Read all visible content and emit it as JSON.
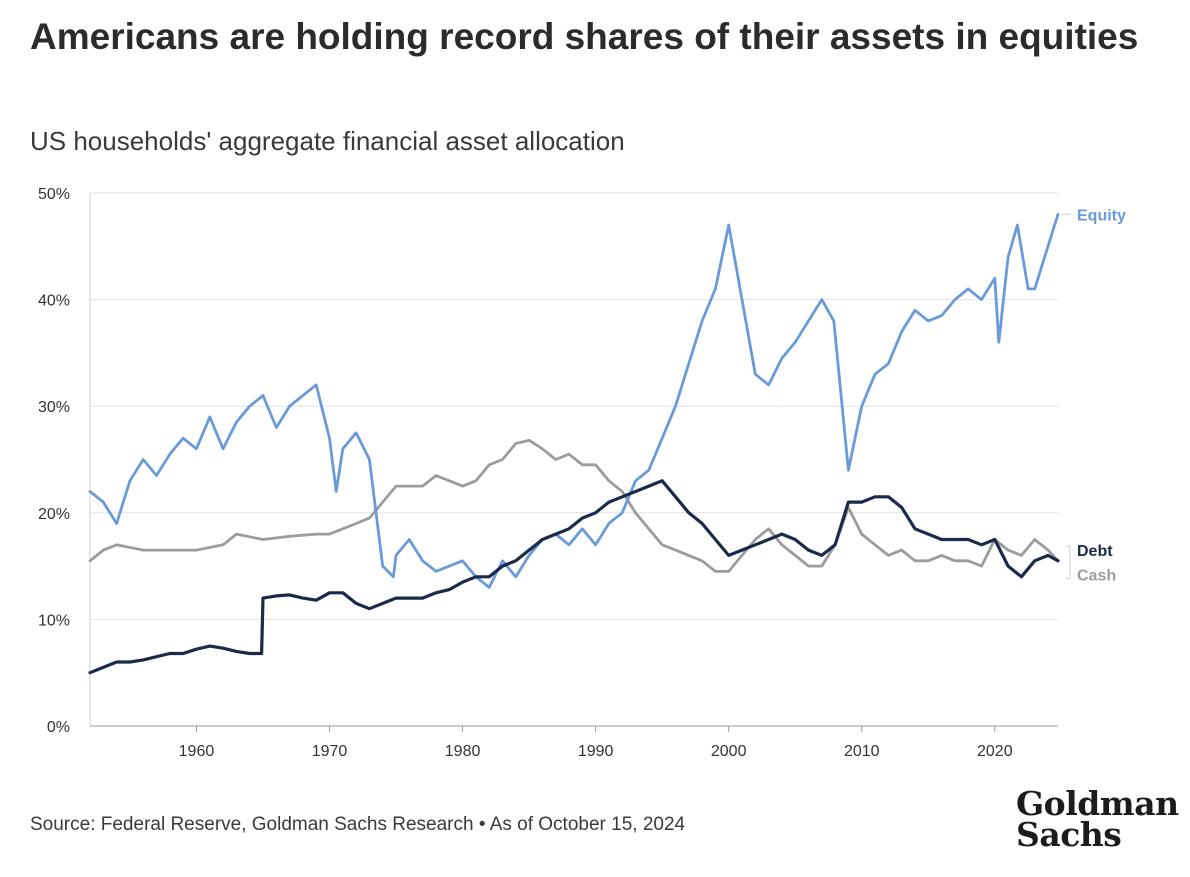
{
  "title": "Americans are holding record shares of their assets in equities",
  "subtitle": "US households' aggregate financial asset allocation",
  "source": "Source: Federal Reserve, Goldman Sachs Research • As of October 15, 2024",
  "logo": {
    "line1": "Goldman",
    "line2": "Sachs"
  },
  "chart_data": {
    "type": "line",
    "xlabel": "",
    "ylabel": "",
    "xlim": [
      1952,
      2024.75
    ],
    "ylim": [
      0,
      50
    ],
    "x_ticks": [
      1960,
      1970,
      1980,
      1990,
      2000,
      2010,
      2020
    ],
    "y_ticks": [
      0,
      10,
      20,
      30,
      40,
      50
    ],
    "y_tick_labels": [
      "0%",
      "10%",
      "20%",
      "30%",
      "40%",
      "50%"
    ],
    "grid": "horizontal",
    "legend": "direct labels at right end",
    "series": [
      {
        "name": "Equity",
        "color": "#6a9bd8",
        "points": [
          [
            1952,
            22
          ],
          [
            1953,
            21
          ],
          [
            1954,
            19
          ],
          [
            1955,
            23
          ],
          [
            1956,
            25
          ],
          [
            1957,
            23.5
          ],
          [
            1958,
            25.5
          ],
          [
            1959,
            27
          ],
          [
            1960,
            26
          ],
          [
            1961,
            29
          ],
          [
            1962,
            26
          ],
          [
            1963,
            28.5
          ],
          [
            1964,
            30
          ],
          [
            1965,
            31
          ],
          [
            1966,
            28
          ],
          [
            1967,
            30
          ],
          [
            1968,
            31
          ],
          [
            1969,
            32
          ],
          [
            1970,
            27
          ],
          [
            1970.5,
            22
          ],
          [
            1971,
            26
          ],
          [
            1972,
            27.5
          ],
          [
            1973,
            25
          ],
          [
            1974,
            15
          ],
          [
            1974.8,
            14
          ],
          [
            1975,
            16
          ],
          [
            1976,
            17.5
          ],
          [
            1977,
            15.5
          ],
          [
            1978,
            14.5
          ],
          [
            1979,
            15
          ],
          [
            1980,
            15.5
          ],
          [
            1981,
            14
          ],
          [
            1982,
            13
          ],
          [
            1983,
            15.5
          ],
          [
            1984,
            14
          ],
          [
            1985,
            16
          ],
          [
            1986,
            17.5
          ],
          [
            1987,
            18
          ],
          [
            1988,
            17
          ],
          [
            1989,
            18.5
          ],
          [
            1990,
            17
          ],
          [
            1991,
            19
          ],
          [
            1992,
            20
          ],
          [
            1993,
            23
          ],
          [
            1994,
            24
          ],
          [
            1995,
            27
          ],
          [
            1996,
            30
          ],
          [
            1997,
            34
          ],
          [
            1998,
            38
          ],
          [
            1999,
            41
          ],
          [
            2000,
            47
          ],
          [
            2001,
            40
          ],
          [
            2002,
            33
          ],
          [
            2003,
            32
          ],
          [
            2004,
            34.5
          ],
          [
            2005,
            36
          ],
          [
            2006,
            38
          ],
          [
            2007,
            40
          ],
          [
            2007.9,
            38
          ],
          [
            2009,
            24
          ],
          [
            2010,
            30
          ],
          [
            2011,
            33
          ],
          [
            2012,
            34
          ],
          [
            2013,
            37
          ],
          [
            2014,
            39
          ],
          [
            2015,
            38
          ],
          [
            2016,
            38.5
          ],
          [
            2017,
            40
          ],
          [
            2018,
            41
          ],
          [
            2019,
            40
          ],
          [
            2020,
            42
          ],
          [
            2020.3,
            36
          ],
          [
            2021,
            44
          ],
          [
            2021.7,
            47
          ],
          [
            2022.5,
            41
          ],
          [
            2023,
            41
          ],
          [
            2024,
            45
          ],
          [
            2024.75,
            48
          ]
        ]
      },
      {
        "name": "Debt",
        "color": "#1b2a4a",
        "points": [
          [
            1952,
            5
          ],
          [
            1953,
            5.5
          ],
          [
            1954,
            6
          ],
          [
            1955,
            6
          ],
          [
            1956,
            6.2
          ],
          [
            1957,
            6.5
          ],
          [
            1958,
            6.8
          ],
          [
            1959,
            6.8
          ],
          [
            1960,
            7.2
          ],
          [
            1961,
            7.5
          ],
          [
            1962,
            7.3
          ],
          [
            1963,
            7
          ],
          [
            1964,
            6.8
          ],
          [
            1964.9,
            6.8
          ],
          [
            1965,
            12
          ],
          [
            1966,
            12.2
          ],
          [
            1967,
            12.3
          ],
          [
            1968,
            12
          ],
          [
            1969,
            11.8
          ],
          [
            1970,
            12.5
          ],
          [
            1971,
            12.5
          ],
          [
            1972,
            11.5
          ],
          [
            1973,
            11
          ],
          [
            1974,
            11.5
          ],
          [
            1975,
            12
          ],
          [
            1976,
            12
          ],
          [
            1977,
            12
          ],
          [
            1978,
            12.5
          ],
          [
            1979,
            12.8
          ],
          [
            1980,
            13.5
          ],
          [
            1981,
            14
          ],
          [
            1982,
            14
          ],
          [
            1983,
            15
          ],
          [
            1984,
            15.5
          ],
          [
            1985,
            16.5
          ],
          [
            1986,
            17.5
          ],
          [
            1987,
            18
          ],
          [
            1988,
            18.5
          ],
          [
            1989,
            19.5
          ],
          [
            1990,
            20
          ],
          [
            1991,
            21
          ],
          [
            1992,
            21.5
          ],
          [
            1993,
            22
          ],
          [
            1994,
            22.5
          ],
          [
            1995,
            23
          ],
          [
            1996,
            21.5
          ],
          [
            1997,
            20
          ],
          [
            1998,
            19
          ],
          [
            1999,
            17.5
          ],
          [
            2000,
            16
          ],
          [
            2001,
            16.5
          ],
          [
            2002,
            17
          ],
          [
            2003,
            17.5
          ],
          [
            2004,
            18
          ],
          [
            2005,
            17.5
          ],
          [
            2006,
            16.5
          ],
          [
            2007,
            16
          ],
          [
            2008,
            17
          ],
          [
            2009,
            21
          ],
          [
            2010,
            21
          ],
          [
            2011,
            21.5
          ],
          [
            2012,
            21.5
          ],
          [
            2013,
            20.5
          ],
          [
            2014,
            18.5
          ],
          [
            2015,
            18
          ],
          [
            2016,
            17.5
          ],
          [
            2017,
            17.5
          ],
          [
            2018,
            17.5
          ],
          [
            2019,
            17
          ],
          [
            2020,
            17.5
          ],
          [
            2021,
            15
          ],
          [
            2022,
            14
          ],
          [
            2023,
            15.5
          ],
          [
            2024,
            16
          ],
          [
            2024.75,
            15.5
          ]
        ]
      },
      {
        "name": "Cash",
        "color": "#9c9c9c",
        "points": [
          [
            1952,
            15.5
          ],
          [
            1953,
            16.5
          ],
          [
            1954,
            17
          ],
          [
            1956,
            16.5
          ],
          [
            1958,
            16.5
          ],
          [
            1960,
            16.5
          ],
          [
            1962,
            17
          ],
          [
            1963,
            18
          ],
          [
            1965,
            17.5
          ],
          [
            1967,
            17.8
          ],
          [
            1969,
            18
          ],
          [
            1970,
            18
          ],
          [
            1971,
            18.5
          ],
          [
            1972,
            19
          ],
          [
            1973,
            19.5
          ],
          [
            1974,
            21
          ],
          [
            1975,
            22.5
          ],
          [
            1976,
            22.5
          ],
          [
            1977,
            22.5
          ],
          [
            1978,
            23.5
          ],
          [
            1979,
            23
          ],
          [
            1980,
            22.5
          ],
          [
            1981,
            23
          ],
          [
            1982,
            24.5
          ],
          [
            1983,
            25
          ],
          [
            1984,
            26.5
          ],
          [
            1985,
            26.8
          ],
          [
            1986,
            26
          ],
          [
            1987,
            25
          ],
          [
            1988,
            25.5
          ],
          [
            1989,
            24.5
          ],
          [
            1990,
            24.5
          ],
          [
            1991,
            23
          ],
          [
            1992,
            22
          ],
          [
            1993,
            20
          ],
          [
            1994,
            18.5
          ],
          [
            1995,
            17
          ],
          [
            1996,
            16.5
          ],
          [
            1997,
            16
          ],
          [
            1998,
            15.5
          ],
          [
            1999,
            14.5
          ],
          [
            2000,
            14.5
          ],
          [
            2001,
            16
          ],
          [
            2002,
            17.5
          ],
          [
            2003,
            18.5
          ],
          [
            2004,
            17
          ],
          [
            2005,
            16
          ],
          [
            2006,
            15
          ],
          [
            2007,
            15
          ],
          [
            2008,
            17
          ],
          [
            2009,
            20.5
          ],
          [
            2010,
            18
          ],
          [
            2011,
            17
          ],
          [
            2012,
            16
          ],
          [
            2013,
            16.5
          ],
          [
            2014,
            15.5
          ],
          [
            2015,
            15.5
          ],
          [
            2016,
            16
          ],
          [
            2017,
            15.5
          ],
          [
            2018,
            15.5
          ],
          [
            2019,
            15
          ],
          [
            2020,
            17.5
          ],
          [
            2021,
            16.5
          ],
          [
            2022,
            16
          ],
          [
            2023,
            17.5
          ],
          [
            2024,
            16.5
          ],
          [
            2024.75,
            15.5
          ]
        ]
      }
    ]
  }
}
